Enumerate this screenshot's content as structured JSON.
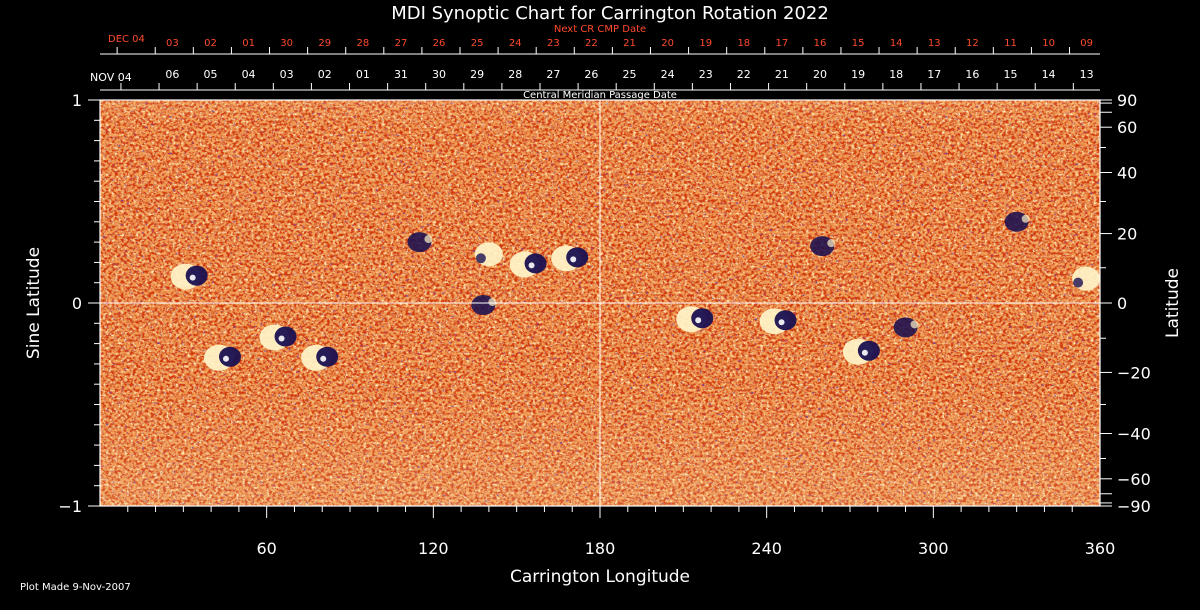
{
  "chart_data": {
    "type": "heatmap",
    "title": "MDI Synoptic Chart for Carrington Rotation 2022",
    "xlabel": "Carrington Longitude",
    "ylabel_left": "Sine Latitude",
    "ylabel_right": "Latitude",
    "xlim": [
      0,
      360
    ],
    "ylim": [
      -1,
      1
    ],
    "x_ticks": [
      60,
      120,
      180,
      240,
      300,
      360
    ],
    "y_left_ticks": [
      {
        "value": 1,
        "label": "1"
      },
      {
        "value": 0,
        "label": "0"
      },
      {
        "value": -1,
        "label": "−1"
      }
    ],
    "y_right_ticks": [
      {
        "deg": 90,
        "label": "90"
      },
      {
        "deg": 60,
        "label": "60"
      },
      {
        "deg": 40,
        "label": "40"
      },
      {
        "deg": 20,
        "label": "20"
      },
      {
        "deg": 0,
        "label": "0"
      },
      {
        "deg": -20,
        "label": "−20"
      },
      {
        "deg": -40,
        "label": "−40"
      },
      {
        "deg": -60,
        "label": "−60"
      },
      {
        "deg": -90,
        "label": "−90"
      }
    ],
    "grid": {
      "equator": true,
      "central_meridian": 180
    },
    "cmp_axis": {
      "label": "Central Meridian Passage Date",
      "start_label": "NOV 04",
      "dates": [
        "06",
        "05",
        "04",
        "03",
        "02",
        "01",
        "31",
        "30",
        "29",
        "28",
        "27",
        "26",
        "25",
        "24",
        "23",
        "22",
        "21",
        "20",
        "19",
        "18",
        "17",
        "16",
        "15",
        "14",
        "13"
      ]
    },
    "next_cr_axis": {
      "label": "Next CR CMP Date",
      "start_label": "DEC 04",
      "dates": [
        "03",
        "02",
        "01",
        "30",
        "29",
        "28",
        "27",
        "26",
        "25",
        "24",
        "23",
        "22",
        "21",
        "20",
        "19",
        "18",
        "17",
        "16",
        "15",
        "14",
        "13",
        "12",
        "11",
        "10",
        "09"
      ]
    },
    "colors": {
      "background": "#000000",
      "quiet_sun": "#e2571b",
      "positive_polarity": "#fff4c8",
      "negative_polarity": "#1a1050",
      "axis_text": "#ffffff",
      "next_cr_text": "#ff4a2e"
    },
    "features": [
      {
        "lon": 33,
        "sinlat": 0.13,
        "polarity": "mixed"
      },
      {
        "lon": 65,
        "sinlat": -0.17,
        "polarity": "mixed"
      },
      {
        "lon": 80,
        "sinlat": -0.27,
        "polarity": "mixed"
      },
      {
        "lon": 45,
        "sinlat": -0.27,
        "polarity": "mixed"
      },
      {
        "lon": 115,
        "sinlat": 0.3,
        "polarity": "negative"
      },
      {
        "lon": 140,
        "sinlat": 0.24,
        "polarity": "positive"
      },
      {
        "lon": 138,
        "sinlat": -0.01,
        "polarity": "negative"
      },
      {
        "lon": 170,
        "sinlat": 0.22,
        "polarity": "mixed"
      },
      {
        "lon": 155,
        "sinlat": 0.19,
        "polarity": "mixed"
      },
      {
        "lon": 215,
        "sinlat": -0.08,
        "polarity": "mixed"
      },
      {
        "lon": 245,
        "sinlat": -0.09,
        "polarity": "mixed"
      },
      {
        "lon": 275,
        "sinlat": -0.24,
        "polarity": "mixed"
      },
      {
        "lon": 290,
        "sinlat": -0.12,
        "polarity": "negative"
      },
      {
        "lon": 260,
        "sinlat": 0.28,
        "polarity": "negative"
      },
      {
        "lon": 330,
        "sinlat": 0.4,
        "polarity": "negative"
      },
      {
        "lon": 355,
        "sinlat": 0.12,
        "polarity": "positive"
      }
    ]
  },
  "footer": {
    "plot_made": "Plot Made  9-Nov-2007"
  }
}
